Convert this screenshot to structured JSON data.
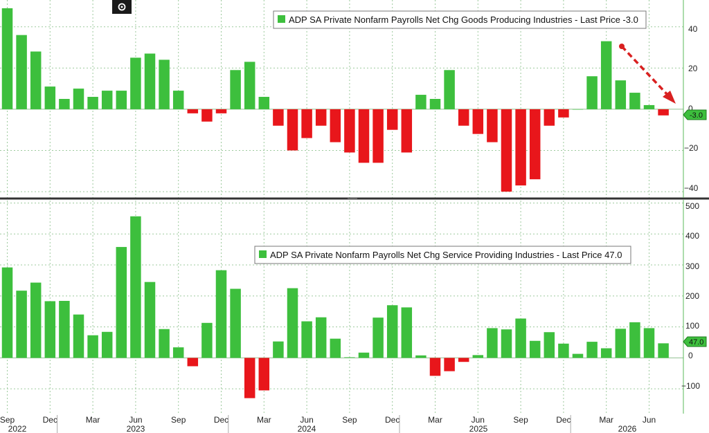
{
  "colors": {
    "up": "#3dbf3d",
    "down": "#e8161b",
    "grid": "#9cc99c",
    "arrow": "#d92020",
    "axis_line": "#59b959"
  },
  "toolbar_icon": "settings-circle-icon",
  "months": {
    "labels": [
      "Sep",
      "Dec",
      "Mar",
      "Jun",
      "Sep",
      "Dec",
      "Mar",
      "Jun",
      "Sep",
      "Dec",
      "Mar",
      "Jun",
      "Sep",
      "Dec",
      "Mar",
      "Jun"
    ],
    "years": [
      "2022",
      "2023",
      "2024",
      "2025",
      "2026"
    ]
  },
  "chart_data": [
    {
      "type": "bar",
      "legend": "ADP SA Private Nonfarm Payrolls Net Chg Goods Producing Industries - Last Price -3.0",
      "last_value_label": "-3.0",
      "y_ticks": [
        "40",
        "20",
        "0",
        "−20",
        "−40"
      ],
      "ylim": [
        -43,
        53
      ],
      "grid": true,
      "legend_position": "top-right",
      "values": [
        49,
        36,
        28,
        11,
        5,
        10,
        6,
        9,
        9,
        25,
        27,
        24,
        9,
        -2,
        -6,
        -2,
        19,
        23,
        6,
        -8,
        -20,
        -14,
        -8,
        -16,
        -21,
        -26,
        -26,
        -10,
        -21,
        7,
        5,
        19,
        -8,
        -12,
        -16,
        -40,
        -37,
        -34,
        -8,
        -4,
        0,
        16,
        33,
        14,
        8,
        2,
        -3
      ],
      "annotation": "dashed-arrow-down"
    },
    {
      "type": "bar",
      "legend": "ADP SA Private Nonfarm Payrolls Net Chg Service Providing Industries - Last Price 47.0",
      "last_value_label": "47.0",
      "y_ticks": [
        "500",
        "400",
        "300",
        "200",
        "100",
        "0",
        "−100"
      ],
      "ylim": [
        -180,
        510
      ],
      "grid": true,
      "legend_position": "top-center",
      "values": [
        292,
        217,
        243,
        183,
        184,
        140,
        73,
        84,
        358,
        457,
        245,
        93,
        34,
        -27,
        113,
        283,
        223,
        -130,
        -105,
        53,
        225,
        118,
        131,
        62,
        2,
        17,
        130,
        170,
        163,
        8,
        -58,
        -43,
        -13,
        9,
        96,
        92,
        127,
        55,
        83,
        46,
        13,
        52,
        31,
        94,
        115,
        96,
        47
      ]
    }
  ]
}
